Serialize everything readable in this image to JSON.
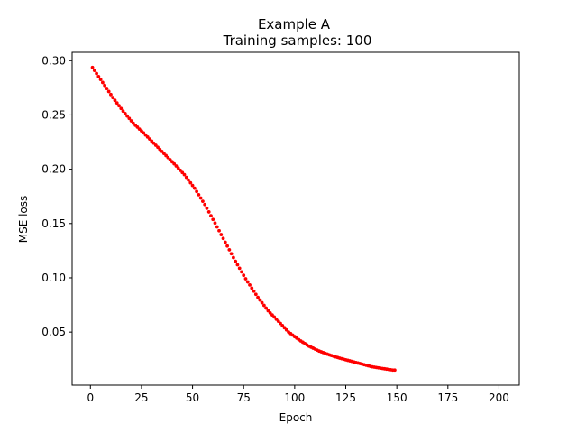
{
  "chart_data": {
    "type": "scatter",
    "title": "Example A",
    "subtitle": "Training samples: 100",
    "xlabel": "Epoch",
    "ylabel": "MSE loss",
    "xlim": [
      -8.95,
      209.95
    ],
    "ylim": [
      0.0011,
      0.3077
    ],
    "xticks": [
      0,
      25,
      50,
      75,
      100,
      125,
      150,
      175,
      200
    ],
    "xtick_labels": [
      "0",
      "25",
      "50",
      "75",
      "100",
      "125",
      "150",
      "175",
      "200"
    ],
    "yticks": [
      0.05,
      0.1,
      0.15,
      0.2,
      0.25,
      0.3
    ],
    "ytick_labels": [
      "0.05",
      "0.10",
      "0.15",
      "0.20",
      "0.25",
      "0.30"
    ],
    "grid": false,
    "marker_color": "#ff0000",
    "series": [
      {
        "x_start": 1,
        "x_step": 1,
        "values": [
          0.2938,
          0.291,
          0.2882,
          0.2854,
          0.2827,
          0.2799,
          0.2772,
          0.2744,
          0.2716,
          0.2688,
          0.266,
          0.2635,
          0.261,
          0.2585,
          0.256,
          0.2535,
          0.2513,
          0.249,
          0.2468,
          0.2445,
          0.2423,
          0.2405,
          0.2388,
          0.237,
          0.2353,
          0.2335,
          0.2316,
          0.2297,
          0.2278,
          0.2259,
          0.224,
          0.2221,
          0.2202,
          0.2183,
          0.2164,
          0.2145,
          0.2126,
          0.2107,
          0.2088,
          0.2069,
          0.205,
          0.203,
          0.201,
          0.199,
          0.197,
          0.195,
          0.1925,
          0.19,
          0.1875,
          0.185,
          0.1825,
          0.1795,
          0.1765,
          0.1735,
          0.1705,
          0.1675,
          0.1641,
          0.1607,
          0.1572,
          0.1538,
          0.1504,
          0.1469,
          0.1434,
          0.1398,
          0.1363,
          0.1328,
          0.1293,
          0.1258,
          0.1222,
          0.1187,
          0.1152,
          0.112,
          0.1088,
          0.1055,
          0.1023,
          0.0991,
          0.0962,
          0.0934,
          0.0905,
          0.0877,
          0.0848,
          0.082,
          0.0795,
          0.0771,
          0.0746,
          0.0721,
          0.0697,
          0.0677,
          0.0658,
          0.0639,
          0.0619,
          0.06,
          0.058,
          0.056,
          0.054,
          0.052,
          0.05,
          0.0486,
          0.0472,
          0.0458,
          0.0444,
          0.043,
          0.0418,
          0.0406,
          0.0394,
          0.0382,
          0.037,
          0.0361,
          0.0352,
          0.0343,
          0.0334,
          0.0325,
          0.0318,
          0.0311,
          0.0304,
          0.0297,
          0.029,
          0.0284,
          0.0278,
          0.0272,
          0.0266,
          0.026,
          0.0255,
          0.025,
          0.0245,
          0.024,
          0.0235,
          0.023,
          0.0225,
          0.022,
          0.0215,
          0.021,
          0.0205,
          0.02,
          0.0195,
          0.019,
          0.0185,
          0.018,
          0.0177,
          0.0174,
          0.0171,
          0.0168,
          0.0165,
          0.0162,
          0.0159,
          0.0156,
          0.0153,
          0.015,
          0.015
        ]
      }
    ]
  }
}
